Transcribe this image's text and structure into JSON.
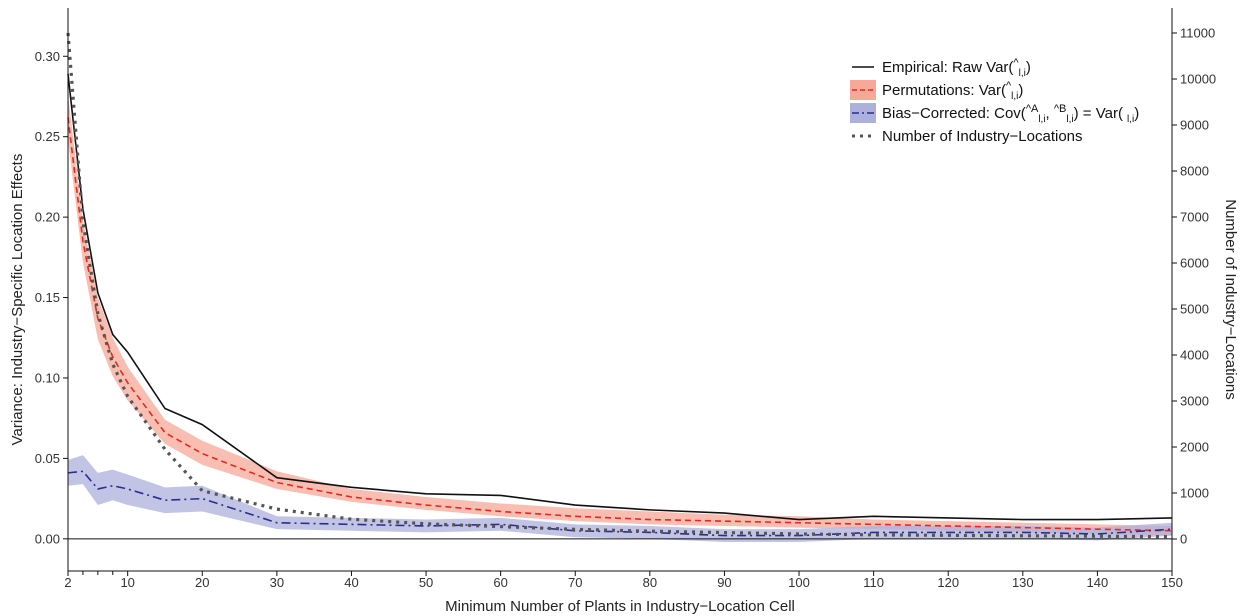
{
  "chart_data": {
    "type": "line",
    "xlabel": "Minimum Number of Plants in Industry−Location Cell",
    "ylabel": "Variance: Industry−Specific Location Effects",
    "y2label": "Number of Industry−Locations",
    "xlim": [
      2,
      150
    ],
    "ylim": [
      -0.02,
      0.33
    ],
    "y2lim": [
      0,
      11000
    ],
    "x_ticks": [
      2,
      10,
      20,
      30,
      40,
      50,
      60,
      70,
      80,
      90,
      100,
      110,
      120,
      130,
      140,
      150
    ],
    "x_minor_ticks": [
      4,
      6,
      8
    ],
    "y_ticks": [
      0.0,
      0.05,
      0.1,
      0.15,
      0.2,
      0.25,
      0.3
    ],
    "y_tick_labels": [
      "0.00",
      "0.05",
      "0.10",
      "0.15",
      "0.20",
      "0.25",
      "0.30"
    ],
    "y2_ticks": [
      0,
      1000,
      2000,
      3000,
      4000,
      5000,
      6000,
      7000,
      8000,
      9000,
      10000,
      11000
    ],
    "x": [
      2,
      4,
      6,
      8,
      10,
      15,
      20,
      30,
      40,
      50,
      60,
      70,
      80,
      90,
      100,
      110,
      120,
      130,
      140,
      150
    ],
    "series": [
      {
        "name": "Empirical: Raw Var(^ l,i)",
        "axis": "left",
        "style": "solid",
        "color": "#111111",
        "values": [
          0.289,
          0.205,
          0.153,
          0.127,
          0.116,
          0.081,
          0.071,
          0.038,
          0.032,
          0.028,
          0.027,
          0.021,
          0.018,
          0.016,
          0.012,
          0.014,
          0.013,
          0.012,
          0.012,
          0.013
        ]
      },
      {
        "name": "Permutations: Var(^ l,i)",
        "axis": "left",
        "style": "dashed",
        "color": "#e8281e",
        "band_color": "#f7a898",
        "values": [
          0.262,
          0.185,
          0.137,
          0.113,
          0.097,
          0.066,
          0.053,
          0.035,
          0.026,
          0.021,
          0.017,
          0.014,
          0.012,
          0.011,
          0.01,
          0.009,
          0.008,
          0.007,
          0.006,
          0.005
        ],
        "lower": [
          0.248,
          0.172,
          0.124,
          0.101,
          0.086,
          0.059,
          0.046,
          0.031,
          0.023,
          0.018,
          0.014,
          0.011,
          0.009,
          0.008,
          0.007,
          0.006,
          0.005,
          0.004,
          0.003,
          0.002
        ],
        "upper": [
          0.276,
          0.198,
          0.15,
          0.125,
          0.107,
          0.074,
          0.061,
          0.042,
          0.031,
          0.026,
          0.022,
          0.019,
          0.017,
          0.015,
          0.014,
          0.012,
          0.011,
          0.01,
          0.009,
          0.008
        ]
      },
      {
        "name": "Bias−Corrected: Cov(^A l,i, ^B l,i) = Var( l,i)",
        "axis": "left",
        "style": "dashdot",
        "color": "#2a2e8c",
        "band_color": "#aeb0dc",
        "values": [
          0.041,
          0.042,
          0.031,
          0.033,
          0.031,
          0.024,
          0.025,
          0.01,
          0.009,
          0.008,
          0.009,
          0.005,
          0.004,
          0.002,
          0.002,
          0.004,
          0.004,
          0.004,
          0.003,
          0.006
        ],
        "lower": [
          0.033,
          0.034,
          0.021,
          0.024,
          0.021,
          0.016,
          0.017,
          0.006,
          0.005,
          0.004,
          0.005,
          0.001,
          0.0,
          -0.002,
          -0.002,
          0.0,
          0.0,
          0.0,
          -0.001,
          0.002
        ],
        "upper": [
          0.049,
          0.052,
          0.041,
          0.043,
          0.04,
          0.032,
          0.033,
          0.014,
          0.013,
          0.012,
          0.013,
          0.009,
          0.008,
          0.006,
          0.006,
          0.008,
          0.008,
          0.008,
          0.007,
          0.01
        ]
      },
      {
        "name": "Number of Industry−Locations",
        "axis": "right",
        "style": "dotted",
        "color": "#555555",
        "values": [
          11000,
          6900,
          4900,
          3800,
          3100,
          1950,
          1050,
          650,
          430,
          330,
          270,
          210,
          170,
          140,
          110,
          90,
          80,
          70,
          60,
          50
        ]
      }
    ],
    "legend": {
      "placement": "top-right",
      "entries": [
        {
          "prefix": "Empirical: Raw Var(",
          "accent": "^",
          "sub": "l,i",
          "suffix": ")"
        },
        {
          "prefix": "Permutations: Var(",
          "accent": "^",
          "sub": "l,i",
          "suffix": ")"
        },
        {
          "prefix": "Bias−Corrected: Cov(",
          "accent": "^A",
          "sub": "l,i",
          "mid": ", ",
          "accent2": "^B",
          "sub2": "l,i",
          "suffix": ") = Var(",
          "sub3": "l,i",
          "end": ")"
        },
        {
          "prefix": "Number of Industry−Locations"
        }
      ]
    }
  }
}
